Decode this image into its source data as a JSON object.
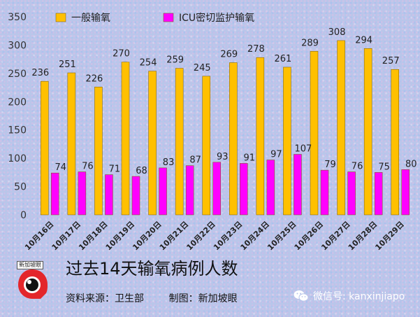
{
  "chart_data": {
    "type": "bar",
    "categories": [
      "10月16日",
      "10月17日",
      "10月18日",
      "10月19日",
      "10月20日",
      "10月21日",
      "10月22日",
      "10月23日",
      "10月24日",
      "10月25日",
      "10月26日",
      "10月27日",
      "10月28日",
      "10月29日"
    ],
    "series": [
      {
        "name": "一般输氧",
        "color": "#FFC000",
        "values": [
          236,
          251,
          226,
          270,
          254,
          259,
          245,
          269,
          278,
          261,
          289,
          308,
          294,
          257
        ]
      },
      {
        "name": "ICU密切监护输氧",
        "color": "#FF00FF",
        "values": [
          74,
          76,
          71,
          68,
          83,
          87,
          93,
          91,
          97,
          107,
          79,
          76,
          75,
          80
        ]
      }
    ],
    "yticks": [
      0,
      50,
      100,
      150,
      200,
      250,
      300,
      350
    ],
    "ylim": [
      0,
      350
    ],
    "grid": false,
    "legend_position": "top",
    "data_labels": true
  },
  "footer": {
    "title": "过去14天输氧病例人数",
    "source": "资料来源：卫生部        制图：新加坡眼"
  },
  "logo": {
    "text": "新加坡眼"
  },
  "watermark": {
    "text": "微信号: kanxinjiapo"
  },
  "colors": {
    "bar_general": "#FFC000",
    "bar_icu": "#FF00FF",
    "bar_stroke": "#7a5a00"
  }
}
